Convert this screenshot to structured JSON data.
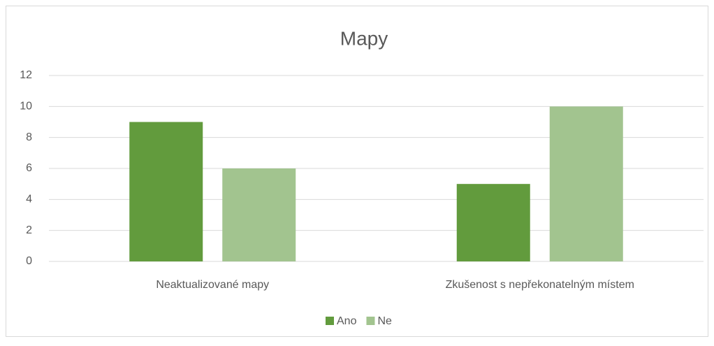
{
  "chart_data": {
    "type": "bar",
    "title": "Mapy",
    "categories": [
      "Neaktualizované mapy",
      "Zkušenost s nepřekonatelným místem"
    ],
    "series": [
      {
        "name": "Ano",
        "color": "#629b3d",
        "values": [
          9,
          5
        ]
      },
      {
        "name": "Ne",
        "color": "#a2c48f",
        "values": [
          6,
          10
        ]
      }
    ],
    "ylim": [
      0,
      12
    ],
    "yticks": [
      0,
      2,
      4,
      6,
      8,
      10,
      12
    ],
    "grid": true,
    "legend": "bottom"
  }
}
